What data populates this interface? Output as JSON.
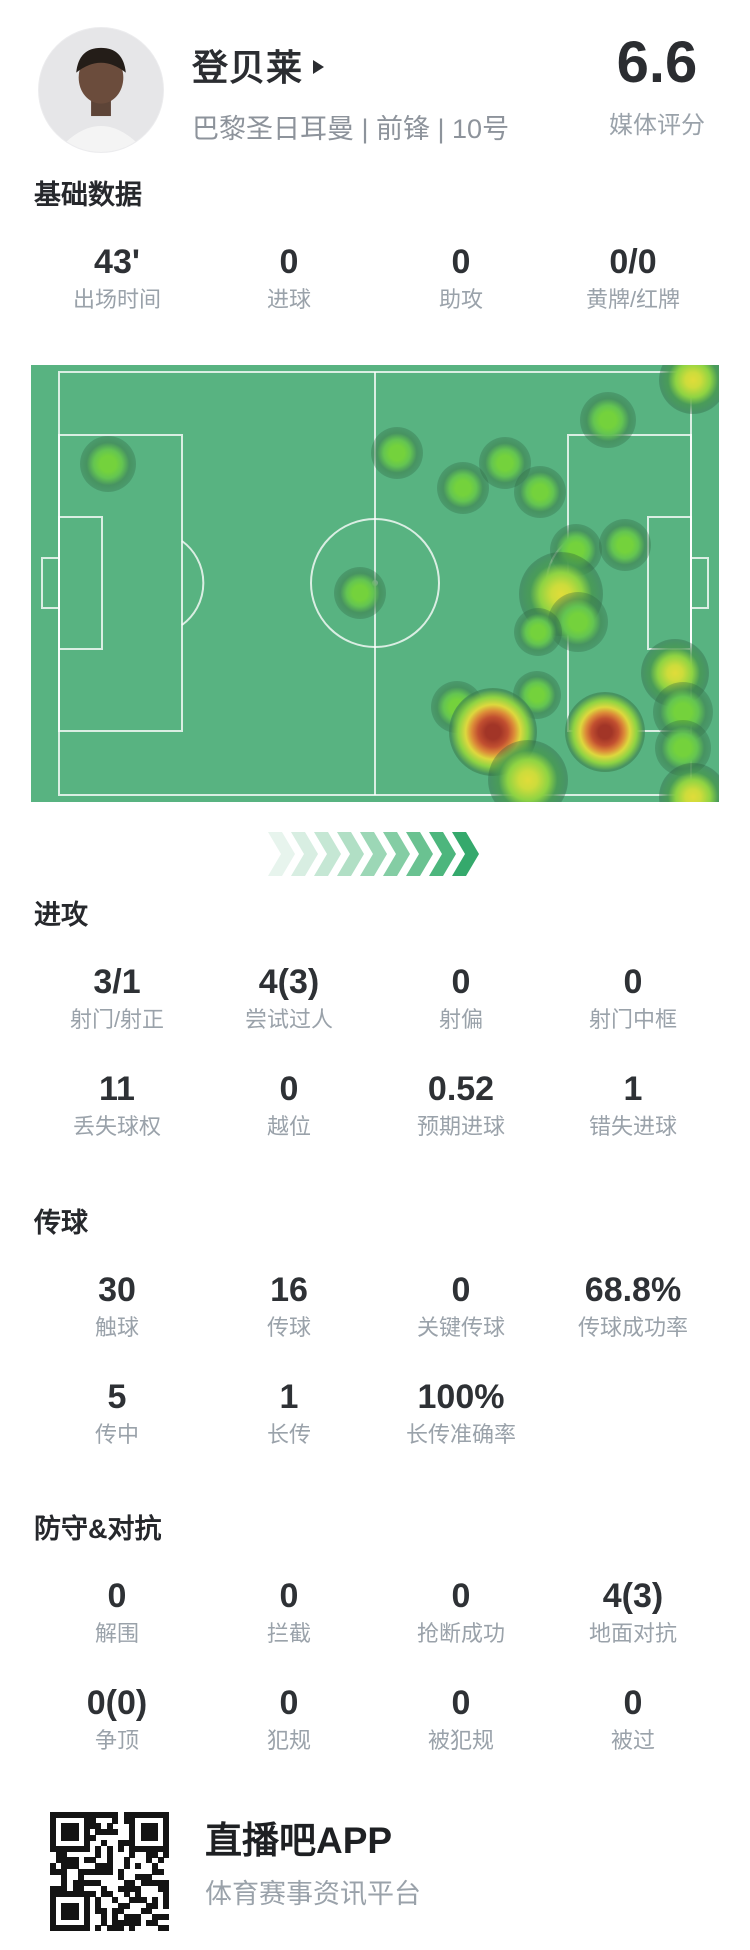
{
  "header": {
    "player_name": "登贝莱",
    "player_info": "巴黎圣日耳曼 | 前锋 | 10号",
    "rating": "6.6",
    "rating_label": "媒体评分"
  },
  "sections": [
    {
      "key": "basic",
      "title": "基础数据",
      "rows": [
        [
          {
            "value": "43'",
            "label": "出场时间"
          },
          {
            "value": "0",
            "label": "进球"
          },
          {
            "value": "0",
            "label": "助攻"
          },
          {
            "value": "0/0",
            "label": "黄牌/红牌"
          }
        ]
      ]
    },
    {
      "key": "attack",
      "title": "进攻",
      "rows": [
        [
          {
            "value": "3/1",
            "label": "射门/射正"
          },
          {
            "value": "4(3)",
            "label": "尝试过人"
          },
          {
            "value": "0",
            "label": "射偏"
          },
          {
            "value": "0",
            "label": "射门中框"
          }
        ],
        [
          {
            "value": "11",
            "label": "丢失球权"
          },
          {
            "value": "0",
            "label": "越位"
          },
          {
            "value": "0.52",
            "label": "预期进球"
          },
          {
            "value": "1",
            "label": "错失进球"
          }
        ]
      ]
    },
    {
      "key": "passing",
      "title": "传球",
      "rows": [
        [
          {
            "value": "30",
            "label": "触球"
          },
          {
            "value": "16",
            "label": "传球"
          },
          {
            "value": "0",
            "label": "关键传球"
          },
          {
            "value": "68.8%",
            "label": "传球成功率"
          }
        ],
        [
          {
            "value": "5",
            "label": "传中"
          },
          {
            "value": "1",
            "label": "长传"
          },
          {
            "value": "100%",
            "label": "长传准确率"
          }
        ]
      ]
    },
    {
      "key": "defense",
      "title": "防守&对抗",
      "rows": [
        [
          {
            "value": "0",
            "label": "解围"
          },
          {
            "value": "0",
            "label": "拦截"
          },
          {
            "value": "0",
            "label": "抢断成功"
          },
          {
            "value": "4(3)",
            "label": "地面对抗"
          }
        ],
        [
          {
            "value": "0(0)",
            "label": "争顶"
          },
          {
            "value": "0",
            "label": "犯规"
          },
          {
            "value": "0",
            "label": "被犯规"
          },
          {
            "value": "0",
            "label": "被过"
          }
        ]
      ]
    }
  ],
  "chart_data": {
    "type": "heatmap",
    "title": "player-position-heatmap",
    "pitch_color": "#58b381",
    "line_color": "rgba(255,255,255,0.78)",
    "points_format": "[x_px, y_px, radius_px, intensity] on 688x437 pitch, intensity g=green y=yellow r=red",
    "points": [
      [
        77,
        99,
        28,
        "g"
      ],
      [
        366,
        88,
        26,
        "g"
      ],
      [
        432,
        123,
        26,
        "g"
      ],
      [
        474,
        98,
        26,
        "g"
      ],
      [
        509,
        127,
        26,
        "g"
      ],
      [
        577,
        55,
        28,
        "g"
      ],
      [
        662,
        15,
        34,
        "y"
      ],
      [
        545,
        185,
        26,
        "g"
      ],
      [
        594,
        180,
        26,
        "g"
      ],
      [
        329,
        228,
        26,
        "g"
      ],
      [
        530,
        229,
        42,
        "y"
      ],
      [
        547,
        257,
        30,
        "g"
      ],
      [
        507,
        267,
        24,
        "g"
      ],
      [
        506,
        330,
        24,
        "g"
      ],
      [
        426,
        342,
        26,
        "g"
      ],
      [
        462,
        367,
        44,
        "r"
      ],
      [
        574,
        367,
        40,
        "r"
      ],
      [
        644,
        308,
        34,
        "y"
      ],
      [
        652,
        347,
        30,
        "g"
      ],
      [
        652,
        383,
        28,
        "g"
      ],
      [
        497,
        415,
        40,
        "y"
      ],
      [
        662,
        432,
        34,
        "y"
      ]
    ]
  },
  "chevrons": {
    "colors": [
      "#e7f4ed",
      "#d8eee2",
      "#c5e7d4",
      "#b1dfc5",
      "#9cd7b6",
      "#84cda4",
      "#6ac291",
      "#4db67d",
      "#35a96c"
    ]
  },
  "footer": {
    "app_name": "直播吧APP",
    "tagline": "体育赛事资讯平台"
  }
}
